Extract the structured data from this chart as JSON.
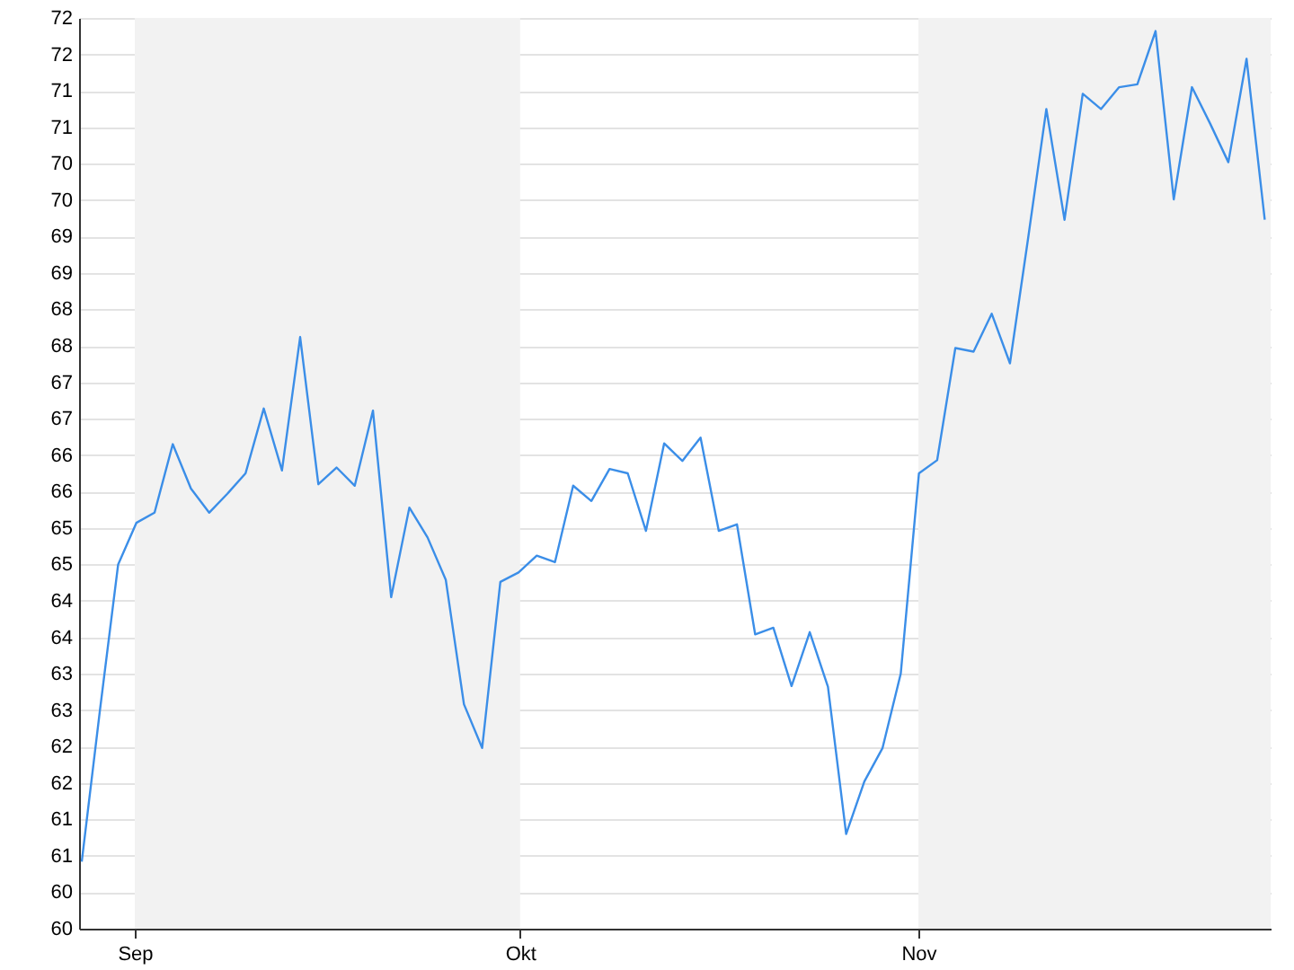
{
  "chart_data": {
    "type": "line",
    "x": [
      "--08-27T21:00",
      "--08-29T07:00",
      "--08-30T17:00",
      "--09-01T03:00",
      "--09-02T13:00",
      "--09-03T23:00",
      "--09-05T09:00",
      "--09-06T19:00",
      "--09-08T05:00",
      "--09-09T15:00",
      "--09-11T01:00",
      "--09-12T11:00",
      "--09-13T21:00",
      "--09-15T07:00",
      "--09-16T17:00",
      "--09-18T03:00",
      "--09-19T13:00",
      "--09-20T23:00",
      "--09-22T09:00",
      "--09-23T19:00",
      "--09-25T05:00",
      "--09-26T15:00",
      "--09-28T01:00",
      "--09-29T11:00",
      "--09-30T21:00",
      "--10-02T07:00",
      "--10-03T17:00",
      "--10-05T03:00",
      "--10-06T13:00",
      "--10-07T23:00",
      "--10-09T09:00",
      "--10-10T19:00",
      "--10-12T05:00",
      "--10-13T15:00",
      "--10-15T01:00",
      "--10-16T11:00",
      "--10-17T21:00",
      "--10-19T07:00",
      "--10-20T17:00",
      "--10-22T03:00",
      "--10-23T13:00",
      "--10-24T23:00",
      "--10-26T09:00",
      "--10-27T19:00",
      "--10-29T05:00",
      "--10-30T15:00",
      "--11-01T01:00",
      "--11-02T11:00",
      "--11-03T21:00",
      "--11-05T07:00",
      "--11-06T17:00",
      "--11-08T03:00",
      "--11-09T13:00",
      "--11-10T23:00",
      "--11-12T09:00",
      "--11-13T19:00",
      "--11-15T05:00",
      "--11-16T15:00",
      "--11-18T01:00",
      "--11-19T11:00",
      "--11-20T21:00",
      "--11-22T07:00",
      "--11-23T17:00",
      "--11-25T03:00",
      "--11-26T13:00",
      "--11-27T23:00"
    ],
    "series": [
      {
        "color": "#3b8ee8",
        "values": [
          60.92,
          63.0,
          65.0,
          65.57,
          65.71,
          66.65,
          66.04,
          65.71,
          65.97,
          66.25,
          67.14,
          66.29,
          68.12,
          66.1,
          66.33,
          66.08,
          67.11,
          64.55,
          65.78,
          65.37,
          64.79,
          63.08,
          62.48,
          64.76,
          64.89,
          65.12,
          65.03,
          66.08,
          65.87,
          66.31,
          66.25,
          65.46,
          66.66,
          66.42,
          66.74,
          65.46,
          65.55,
          64.04,
          64.13,
          63.33,
          64.07,
          63.32,
          61.3,
          62.02,
          62.48,
          63.5,
          66.25,
          66.43,
          67.97,
          67.92,
          68.44,
          67.76,
          69.48,
          71.25,
          69.73,
          71.46,
          71.25,
          71.55,
          71.59,
          72.32,
          70.01,
          71.55,
          71.05,
          70.52,
          71.94,
          69.73
        ]
      }
    ],
    "xlim": [
      "--08-27T16:00",
      "--11-28T10:00"
    ],
    "xticks": [
      {
        "value": "--09-01",
        "label": "Sep"
      },
      {
        "value": "--10-01",
        "label": "Okt"
      },
      {
        "value": "--11-01",
        "label": "Nov"
      }
    ],
    "ylim": [
      60,
      72.5
    ],
    "yticks": [
      {
        "value": 60,
        "label": "60"
      },
      {
        "value": 60.5,
        "label": "60"
      },
      {
        "value": 61,
        "label": "61"
      },
      {
        "value": 61.5,
        "label": "61"
      },
      {
        "value": 62,
        "label": "62"
      },
      {
        "value": 62.5,
        "label": "62"
      },
      {
        "value": 63,
        "label": "63"
      },
      {
        "value": 63.5,
        "label": "63"
      },
      {
        "value": 64,
        "label": "64"
      },
      {
        "value": 64.5,
        "label": "64"
      },
      {
        "value": 65,
        "label": "65"
      },
      {
        "value": 65.5,
        "label": "65"
      },
      {
        "value": 66,
        "label": "66"
      },
      {
        "value": 66.5,
        "label": "66"
      },
      {
        "value": 67,
        "label": "67"
      },
      {
        "value": 67.5,
        "label": "67"
      },
      {
        "value": 68,
        "label": "68"
      },
      {
        "value": 68.5,
        "label": "68"
      },
      {
        "value": 69,
        "label": "69"
      },
      {
        "value": 69.5,
        "label": "69"
      },
      {
        "value": 70,
        "label": "70"
      },
      {
        "value": 70.5,
        "label": "70"
      },
      {
        "value": 71,
        "label": "71"
      },
      {
        "value": 71.5,
        "label": "71"
      },
      {
        "value": 72,
        "label": "72"
      },
      {
        "value": 72.5,
        "label": "72"
      }
    ],
    "grid": "y",
    "bands": [
      {
        "axis": "x",
        "from": "--09-01",
        "to": "--10-01",
        "color": "#f2f2f2"
      },
      {
        "axis": "x",
        "from": "--11-01",
        "to": "--11-28T10:00",
        "color": "#f2f2f2"
      }
    ]
  }
}
